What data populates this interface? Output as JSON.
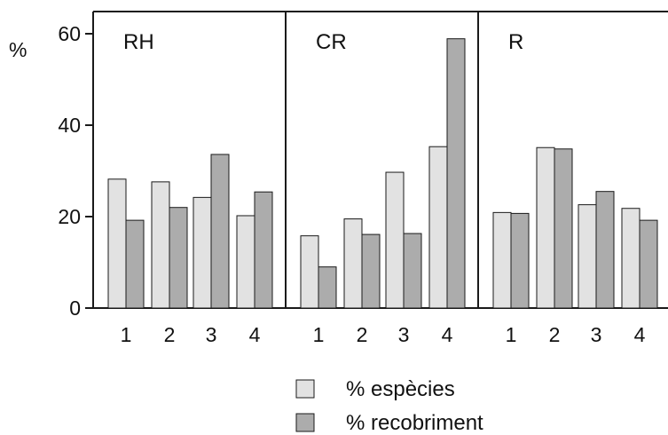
{
  "chart_data": {
    "type": "bar",
    "y_unit_label": "%",
    "ylim": [
      0,
      65
    ],
    "y_ticks": [
      0,
      20,
      40,
      60
    ],
    "categories": [
      "1",
      "2",
      "3",
      "4"
    ],
    "panels": [
      {
        "label": "RH",
        "series": [
          {
            "name": "% espècies",
            "values": [
              28.2,
              27.6,
              24.2,
              20.2
            ]
          },
          {
            "name": "% recobriment",
            "values": [
              19.2,
              22.0,
              33.6,
              25.4
            ]
          }
        ]
      },
      {
        "label": "CR",
        "series": [
          {
            "name": "% espècies",
            "values": [
              15.8,
              19.5,
              29.7,
              35.3
            ]
          },
          {
            "name": "% recobriment",
            "values": [
              9.0,
              16.1,
              16.3,
              58.9
            ]
          }
        ]
      },
      {
        "label": "R",
        "series": [
          {
            "name": "% espècies",
            "values": [
              20.9,
              35.1,
              22.6,
              21.8
            ]
          },
          {
            "name": "% recobriment",
            "values": [
              20.7,
              34.8,
              25.5,
              19.2
            ]
          }
        ]
      }
    ],
    "legend": {
      "placement": "bottom-right",
      "items": [
        "% espècies",
        "% recobriment"
      ]
    },
    "colors": {
      "especies": "#e2e2e2",
      "recobriment": "#acacac",
      "stroke": "#1a1a1a"
    },
    "grid": false
  }
}
